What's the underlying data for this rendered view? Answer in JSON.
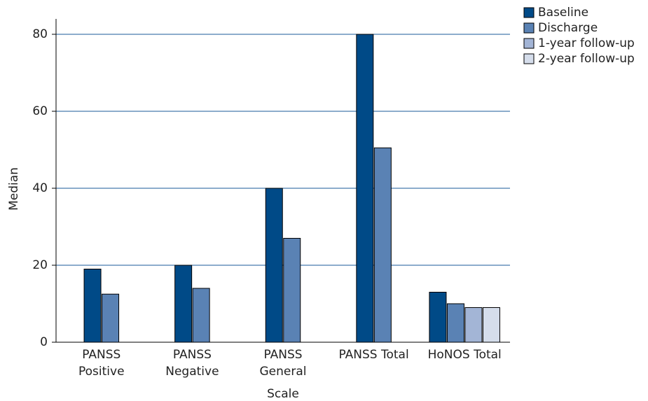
{
  "chart_data": {
    "type": "bar",
    "x_label": "Scale",
    "y_label": "Median",
    "categories": [
      "PANSS\nPositive",
      "PANSS\nNegative",
      "PANSS\nGeneral",
      "PANSS Total",
      "HoNOS Total"
    ],
    "series": [
      {
        "name": "Baseline",
        "color": "#004a87",
        "values": [
          19,
          20,
          40,
          80,
          13
        ]
      },
      {
        "name": "Discharge",
        "color": "#5a82b4",
        "values": [
          12.5,
          14,
          27,
          50.5,
          10
        ]
      },
      {
        "name": "1-year follow-up",
        "color": "#a3b5d6",
        "values": [
          null,
          null,
          null,
          null,
          9
        ]
      },
      {
        "name": "2-year follow-up",
        "color": "#d5ddeb",
        "values": [
          null,
          null,
          null,
          null,
          9
        ]
      }
    ],
    "ylim": [
      0,
      84
    ],
    "yticks": [
      0,
      20,
      40,
      60,
      80
    ],
    "grid": true,
    "legend": "top-right"
  }
}
